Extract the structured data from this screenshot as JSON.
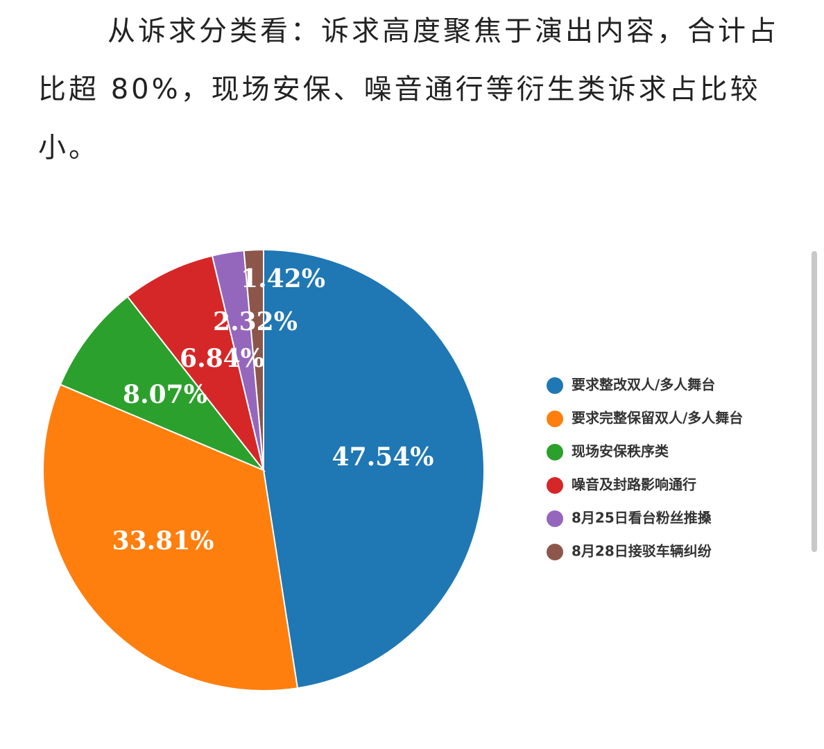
{
  "paragraph": "从诉求分类看：诉求高度聚焦于演出内容，合计占比超 80%，现场安保、噪音通行等衍生类诉求占比较小。",
  "chart_data": {
    "type": "pie",
    "categories": [
      "要求整改双人/多人舞台",
      "要求完整保留双人/多人舞台",
      "现场安保秩序类",
      "噪音及封路影响通行",
      "8月25日看台粉丝推搡",
      "8月28日接驳车辆纠纷"
    ],
    "values": [
      47.54,
      33.81,
      8.07,
      6.84,
      2.32,
      1.42
    ],
    "value_labels": [
      "47.54%",
      "33.81%",
      "8.07%",
      "6.84%",
      "2.32%",
      "1.42%"
    ],
    "colors": [
      "#1f77b4",
      "#ff7f0e",
      "#2ca02c",
      "#d62728",
      "#9467bd",
      "#8c564b"
    ]
  }
}
